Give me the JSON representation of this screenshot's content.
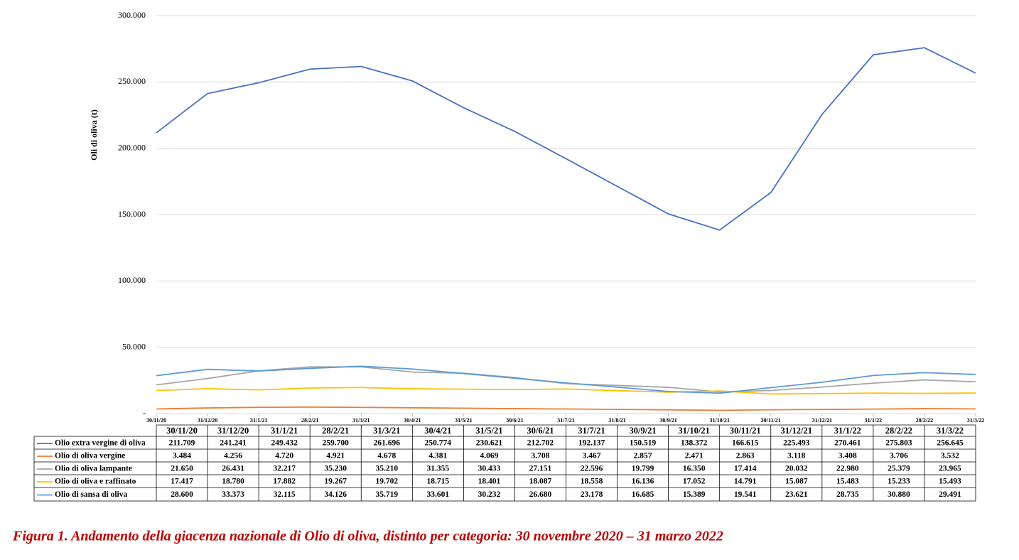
{
  "chart_data": {
    "type": "line",
    "y_label": "Oli di oliva (t)",
    "caption": "Figura 1. Andamento della giacenza nazionale di Olio di oliva, distinto per categoria: 30 novembre 2020 – 31 marzo 2022",
    "ylim": [
      0,
      300000
    ],
    "yticks": [
      {
        "value": 0,
        "label": "-"
      },
      {
        "value": 50000,
        "label": "50.000"
      },
      {
        "value": 100000,
        "label": "100.000"
      },
      {
        "value": 150000,
        "label": "150.000"
      },
      {
        "value": 200000,
        "label": "200.000"
      },
      {
        "value": 250000,
        "label": "250.000"
      },
      {
        "value": 300000,
        "label": "300.000"
      }
    ],
    "grid": true,
    "xticks": [
      "30/11/20",
      "31/12/20",
      "31/1/21",
      "28/2/21",
      "31/3/21",
      "30/4/21",
      "31/5/21",
      "30/6/21",
      "31/7/21",
      "31/8/21",
      "30/9/21",
      "31/10/21",
      "30/11/21",
      "31/12/21",
      "31/1/22",
      "28/2/22",
      "31/3/22"
    ],
    "categories": [
      "30/11/20",
      "31/12/20",
      "31/1/21",
      "28/2/21",
      "31/3/21",
      "30/4/21",
      "31/5/21",
      "30/6/21",
      "31/7/21",
      "30/9/21",
      "31/10/21",
      "30/11/21",
      "31/12/21",
      "31/1/22",
      "28/2/22",
      "31/3/22"
    ],
    "series": [
      {
        "name": "Olio extra vergine di oliva",
        "color": "#4472c4",
        "values": [
          211709,
          241241,
          249432,
          259700,
          261696,
          250774,
          230621,
          212702,
          192137,
          150519,
          138372,
          166615,
          225493,
          270461,
          275803,
          256645
        ],
        "value_labels": [
          "211.709",
          "241.241",
          "249.432",
          "259.700",
          "261.696",
          "250.774",
          "230.621",
          "212.702",
          "192.137",
          "150.519",
          "138.372",
          "166.615",
          "225.493",
          "270.461",
          "275.803",
          "256.645"
        ]
      },
      {
        "name": "Olio di oliva vergine",
        "color": "#ed7d31",
        "values": [
          3484,
          4256,
          4720,
          4921,
          4678,
          4381,
          4069,
          3708,
          3467,
          2857,
          2471,
          2863,
          3118,
          3408,
          3706,
          3532
        ],
        "value_labels": [
          "3.484",
          "4.256",
          "4.720",
          "4.921",
          "4.678",
          "4.381",
          "4.069",
          "3.708",
          "3.467",
          "2.857",
          "2.471",
          "2.863",
          "3.118",
          "3.408",
          "3.706",
          "3.532"
        ]
      },
      {
        "name": "Olio di oliva lampante",
        "color": "#a5a5a5",
        "values": [
          21650,
          26431,
          32217,
          35230,
          35210,
          31355,
          30433,
          27151,
          22596,
          19799,
          16350,
          17414,
          20032,
          22980,
          25379,
          23965
        ],
        "value_labels": [
          "21.650",
          "26.431",
          "32.217",
          "35.230",
          "35.210",
          "31.355",
          "30.433",
          "27.151",
          "22.596",
          "19.799",
          "16.350",
          "17.414",
          "20.032",
          "22.980",
          "25.379",
          "23.965"
        ]
      },
      {
        "name": "Olio di oliva e raffinato",
        "color": "#ffc000",
        "values": [
          17417,
          18780,
          17882,
          19267,
          19702,
          18715,
          18401,
          18087,
          18558,
          16136,
          17052,
          14791,
          15087,
          15483,
          15233,
          15493
        ],
        "value_labels": [
          "17.417",
          "18.780",
          "17.882",
          "19.267",
          "19.702",
          "18.715",
          "18.401",
          "18.087",
          "18.558",
          "16.136",
          "17.052",
          "14.791",
          "15.087",
          "15.483",
          "15.233",
          "15.493"
        ]
      },
      {
        "name": "Olio di sansa di oliva",
        "color": "#5b9bd5",
        "values": [
          28600,
          33373,
          32115,
          34126,
          35719,
          33601,
          30232,
          26680,
          23178,
          16685,
          15389,
          19541,
          23621,
          28735,
          30880,
          29491
        ],
        "value_labels": [
          "28.600",
          "33.373",
          "32.115",
          "34.126",
          "35.719",
          "33.601",
          "30.232",
          "26.680",
          "23.178",
          "16.685",
          "15.389",
          "19.541",
          "23.621",
          "28.735",
          "30.880",
          "29.491"
        ]
      }
    ]
  }
}
